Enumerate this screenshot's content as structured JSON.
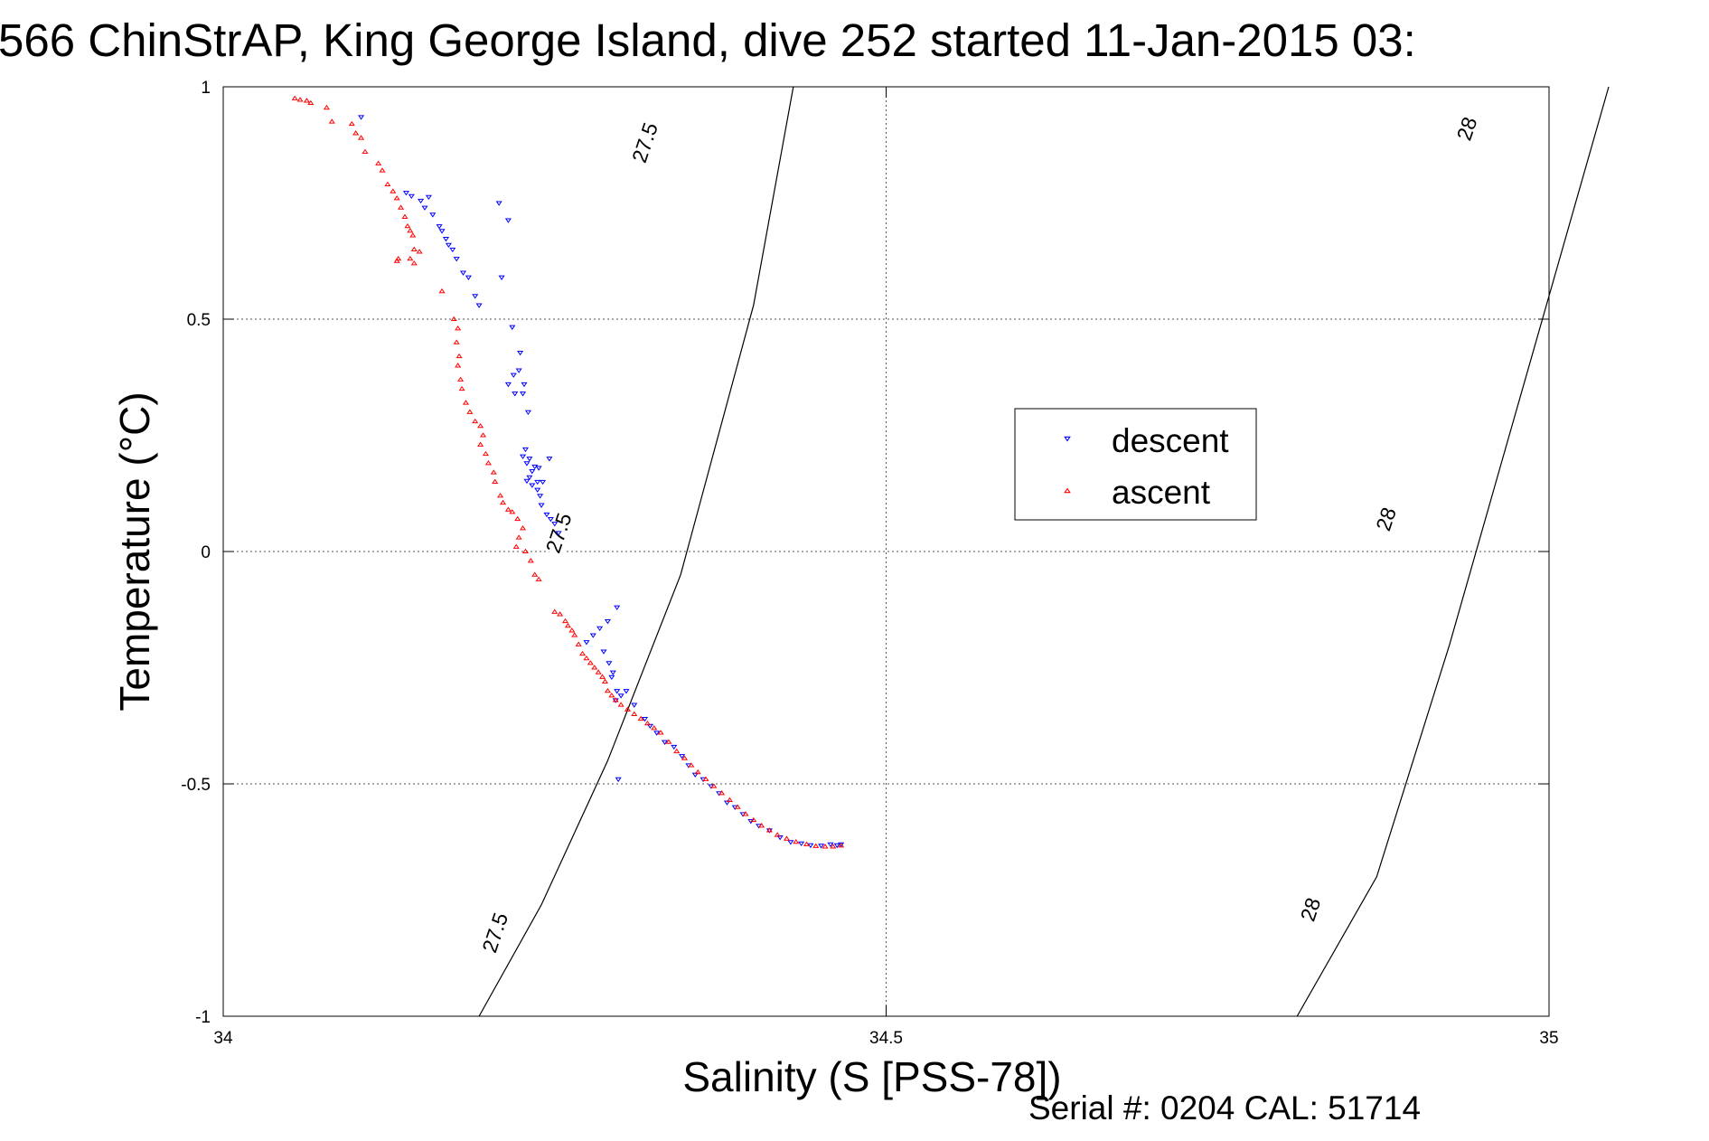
{
  "chart_data": {
    "type": "scatter",
    "title": "566 ChinStrAP, King George Island, dive 252 started 11-Jan-2015 03:",
    "xlabel": "Salinity (S [PSS-78])",
    "ylabel": "Temperature (°C)",
    "xlim": [
      34,
      35
    ],
    "ylim": [
      -1,
      1
    ],
    "grid": true,
    "x_ticks": [
      34,
      34.5,
      35
    ],
    "x_tick_labels": [
      "34",
      "34.5",
      "35"
    ],
    "y_ticks": [
      1,
      0.5,
      0,
      -0.5,
      -1
    ],
    "y_tick_labels": [
      "1",
      "0.5",
      "0",
      "-0.5",
      "-1"
    ],
    "legend": {
      "placement": "center-right",
      "entries": [
        {
          "label": "descent",
          "color": "#0000ff",
          "marker": "triangle-down"
        },
        {
          "label": "ascent",
          "color": "#ff0000",
          "marker": "triangle-up"
        }
      ]
    },
    "isopycnals": [
      {
        "label": "27.5",
        "points": [
          [
            34.193,
            -1.0
          ],
          [
            34.24,
            -0.76
          ],
          [
            34.29,
            -0.45
          ],
          [
            34.345,
            -0.05
          ],
          [
            34.4,
            0.53
          ],
          [
            34.43,
            1.0
          ]
        ],
        "label_positions": [
          {
            "text": "27.5",
            "s": 34.205,
            "t": -0.82
          },
          {
            "text": "27.5",
            "s": 34.253,
            "t": 0.04
          },
          {
            "text": "27.5",
            "s": 34.318,
            "t": 0.88
          }
        ]
      },
      {
        "label": "28",
        "points": [
          [
            34.81,
            -1.0
          ],
          [
            34.87,
            -0.7
          ],
          [
            34.925,
            -0.2
          ],
          [
            34.985,
            0.4
          ],
          [
            35.045,
            1.0
          ]
        ],
        "label_positions": [
          {
            "text": "28",
            "s": 34.82,
            "t": -0.77
          },
          {
            "text": "28",
            "s": 34.877,
            "t": 0.07
          },
          {
            "text": "28",
            "s": 34.938,
            "t": 0.91
          }
        ]
      }
    ],
    "series": [
      {
        "name": "descent",
        "color": "#0000ff",
        "marker": "triangle-down",
        "points": [
          [
            34.104,
            0.935
          ],
          [
            34.138,
            0.772
          ],
          [
            34.142,
            0.765
          ],
          [
            34.149,
            0.755
          ],
          [
            34.155,
            0.763
          ],
          [
            34.152,
            0.74
          ],
          [
            34.158,
            0.725
          ],
          [
            34.163,
            0.7
          ],
          [
            34.165,
            0.69
          ],
          [
            34.168,
            0.673
          ],
          [
            34.17,
            0.66
          ],
          [
            34.173,
            0.65
          ],
          [
            34.176,
            0.63
          ],
          [
            34.181,
            0.6
          ],
          [
            34.185,
            0.59
          ],
          [
            34.19,
            0.55
          ],
          [
            34.193,
            0.53
          ],
          [
            34.208,
            0.75
          ],
          [
            34.215,
            0.713
          ],
          [
            34.21,
            0.59
          ],
          [
            34.218,
            0.483
          ],
          [
            34.224,
            0.428
          ],
          [
            34.223,
            0.39
          ],
          [
            34.219,
            0.38
          ],
          [
            34.215,
            0.36
          ],
          [
            34.227,
            0.36
          ],
          [
            34.22,
            0.34
          ],
          [
            34.226,
            0.34
          ],
          [
            34.23,
            0.3
          ],
          [
            34.228,
            0.22
          ],
          [
            34.226,
            0.205
          ],
          [
            34.231,
            0.2
          ],
          [
            34.229,
            0.19
          ],
          [
            34.235,
            0.183
          ],
          [
            34.238,
            0.18
          ],
          [
            34.233,
            0.173
          ],
          [
            34.231,
            0.16
          ],
          [
            34.229,
            0.152
          ],
          [
            34.237,
            0.15
          ],
          [
            34.241,
            0.15
          ],
          [
            34.233,
            0.143
          ],
          [
            34.237,
            0.133
          ],
          [
            34.239,
            0.12
          ],
          [
            34.246,
            0.2
          ],
          [
            34.24,
            0.1
          ],
          [
            34.244,
            0.08
          ],
          [
            34.247,
            0.07
          ],
          [
            34.25,
            0.06
          ],
          [
            34.253,
            0.04
          ],
          [
            34.274,
            -0.195
          ],
          [
            34.279,
            -0.18
          ],
          [
            34.284,
            -0.165
          ],
          [
            34.29,
            -0.15
          ],
          [
            34.297,
            -0.12
          ],
          [
            34.287,
            -0.215
          ],
          [
            34.291,
            -0.24
          ],
          [
            34.294,
            -0.26
          ],
          [
            34.293,
            -0.27
          ],
          [
            34.297,
            -0.3
          ],
          [
            34.3,
            -0.31
          ],
          [
            34.296,
            -0.32
          ],
          [
            34.304,
            -0.3
          ],
          [
            34.298,
            -0.49
          ],
          [
            34.31,
            -0.33
          ],
          [
            34.318,
            -0.36
          ],
          [
            34.322,
            -0.375
          ],
          [
            34.327,
            -0.39
          ],
          [
            34.333,
            -0.41
          ],
          [
            34.34,
            -0.42
          ],
          [
            34.346,
            -0.44
          ],
          [
            34.351,
            -0.46
          ],
          [
            34.356,
            -0.48
          ],
          [
            34.362,
            -0.49
          ],
          [
            34.368,
            -0.505
          ],
          [
            34.374,
            -0.52
          ],
          [
            34.38,
            -0.54
          ],
          [
            34.386,
            -0.55
          ],
          [
            34.392,
            -0.565
          ],
          [
            34.398,
            -0.58
          ],
          [
            34.404,
            -0.59
          ],
          [
            34.412,
            -0.6
          ],
          [
            34.42,
            -0.615
          ],
          [
            34.428,
            -0.625
          ],
          [
            34.436,
            -0.628
          ],
          [
            34.443,
            -0.632
          ],
          [
            34.451,
            -0.633
          ],
          [
            34.458,
            -0.63
          ],
          [
            34.463,
            -0.632
          ],
          [
            34.466,
            -0.63
          ]
        ]
      },
      {
        "name": "ascent",
        "color": "#ff0000",
        "marker": "triangle-up",
        "points": [
          [
            34.054,
            0.975
          ],
          [
            34.058,
            0.972
          ],
          [
            34.063,
            0.97
          ],
          [
            34.066,
            0.965
          ],
          [
            34.078,
            0.955
          ],
          [
            34.082,
            0.925
          ],
          [
            34.097,
            0.92
          ],
          [
            34.1,
            0.9
          ],
          [
            34.104,
            0.89
          ],
          [
            34.107,
            0.86
          ],
          [
            34.117,
            0.835
          ],
          [
            34.12,
            0.82
          ],
          [
            34.124,
            0.79
          ],
          [
            34.128,
            0.775
          ],
          [
            34.131,
            0.76
          ],
          [
            34.134,
            0.74
          ],
          [
            34.137,
            0.72
          ],
          [
            34.139,
            0.7
          ],
          [
            34.141,
            0.69
          ],
          [
            34.143,
            0.68
          ],
          [
            34.144,
            0.65
          ],
          [
            34.141,
            0.63
          ],
          [
            34.131,
            0.625
          ],
          [
            34.132,
            0.63
          ],
          [
            34.144,
            0.62
          ],
          [
            34.148,
            0.645
          ],
          [
            34.165,
            0.56
          ],
          [
            34.174,
            0.5
          ],
          [
            34.177,
            0.48
          ],
          [
            34.176,
            0.45
          ],
          [
            34.178,
            0.42
          ],
          [
            34.177,
            0.4
          ],
          [
            34.179,
            0.37
          ],
          [
            34.18,
            0.35
          ],
          [
            34.183,
            0.32
          ],
          [
            34.186,
            0.3
          ],
          [
            34.19,
            0.28
          ],
          [
            34.194,
            0.27
          ],
          [
            34.196,
            0.25
          ],
          [
            34.194,
            0.23
          ],
          [
            34.198,
            0.21
          ],
          [
            34.2,
            0.19
          ],
          [
            34.204,
            0.17
          ],
          [
            34.205,
            0.15
          ],
          [
            34.209,
            0.12
          ],
          [
            34.211,
            0.105
          ],
          [
            34.215,
            0.09
          ],
          [
            34.218,
            0.085
          ],
          [
            34.222,
            0.07
          ],
          [
            34.226,
            0.05
          ],
          [
            34.223,
            0.03
          ],
          [
            34.221,
            0.01
          ],
          [
            34.228,
            0.0
          ],
          [
            34.232,
            -0.02
          ],
          [
            34.235,
            -0.05
          ],
          [
            34.238,
            -0.06
          ],
          [
            34.25,
            -0.13
          ],
          [
            34.254,
            -0.135
          ],
          [
            34.258,
            -0.15
          ],
          [
            34.26,
            -0.16
          ],
          [
            34.263,
            -0.17
          ],
          [
            34.265,
            -0.18
          ],
          [
            34.268,
            -0.2
          ],
          [
            34.271,
            -0.22
          ],
          [
            34.274,
            -0.23
          ],
          [
            34.277,
            -0.24
          ],
          [
            34.28,
            -0.25
          ],
          [
            34.283,
            -0.26
          ],
          [
            34.286,
            -0.27
          ],
          [
            34.288,
            -0.28
          ],
          [
            34.29,
            -0.3
          ],
          [
            34.293,
            -0.31
          ],
          [
            34.296,
            -0.32
          ],
          [
            34.3,
            -0.33
          ],
          [
            34.305,
            -0.34
          ],
          [
            34.31,
            -0.35
          ],
          [
            34.315,
            -0.36
          ],
          [
            34.32,
            -0.37
          ],
          [
            34.325,
            -0.38
          ],
          [
            34.33,
            -0.39
          ],
          [
            34.336,
            -0.41
          ],
          [
            34.342,
            -0.43
          ],
          [
            34.348,
            -0.445
          ],
          [
            34.353,
            -0.46
          ],
          [
            34.358,
            -0.475
          ],
          [
            34.364,
            -0.49
          ],
          [
            34.37,
            -0.505
          ],
          [
            34.376,
            -0.52
          ],
          [
            34.382,
            -0.535
          ],
          [
            34.388,
            -0.55
          ],
          [
            34.394,
            -0.565
          ],
          [
            34.4,
            -0.578
          ],
          [
            34.406,
            -0.59
          ],
          [
            34.412,
            -0.6
          ],
          [
            34.418,
            -0.61
          ],
          [
            34.425,
            -0.618
          ],
          [
            34.432,
            -0.625
          ],
          [
            34.44,
            -0.63
          ],
          [
            34.447,
            -0.634
          ],
          [
            34.454,
            -0.635
          ],
          [
            34.46,
            -0.635
          ],
          [
            34.466,
            -0.633
          ]
        ]
      }
    ]
  },
  "footer": {
    "serial_text": "Serial #: 0204  CAL: 51714"
  }
}
